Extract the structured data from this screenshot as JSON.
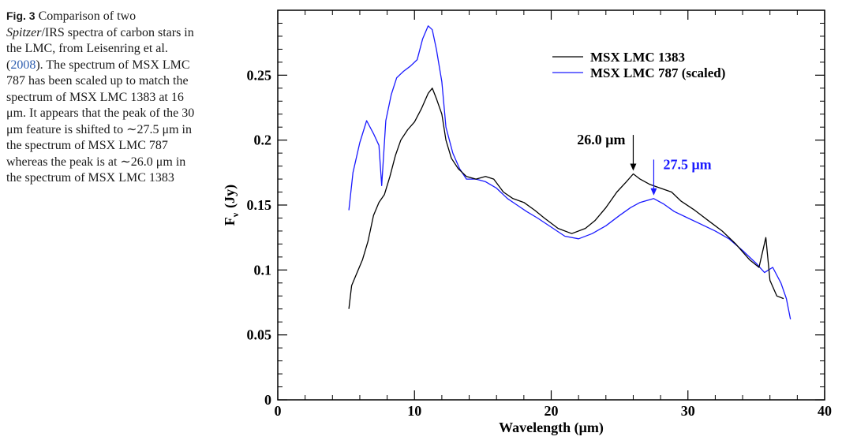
{
  "caption": {
    "label": "Fig. 3",
    "part1": "Comparison of two",
    "italic": "Spitzer",
    "part2": "/IRS spectra of carbon stars in the LMC, from Leisenring et al. (",
    "cite": "2008",
    "part3": "). The spectrum of MSX LMC 787 has been scaled up to match the spectrum of MSX LMC 1383 at 16 μm. It appears that the peak of the 30 μm feature is shifted to ∼27.5 μm in the spectrum of MSX LMC 787 whereas the peak is at ∼26.0 μm in the spectrum of MSX LMC 1383"
  },
  "colors": {
    "series1": "#000000",
    "series2": "#1a1aff",
    "annotation2": "#1a1aff"
  },
  "chart_data": {
    "type": "line",
    "title": "",
    "xlabel": "Wavelength (μm)",
    "ylabel_main": "F",
    "ylabel_sub": "ν",
    "ylabel_unit": "(Jy)",
    "xlim": [
      0,
      40
    ],
    "ylim": [
      0,
      0.3
    ],
    "x_ticks": [
      0,
      10,
      20,
      30,
      40
    ],
    "y_ticks": [
      0,
      0.05,
      0.1,
      0.15,
      0.2,
      0.25
    ],
    "y_tick_labels": [
      "0",
      "0.05",
      "0.1",
      "0.15",
      "0.2",
      "0.25"
    ],
    "grid": false,
    "legend_position": "top-right",
    "series": [
      {
        "name": "MSX LMC 1383",
        "color": "#000000",
        "points": [
          [
            5.2,
            0.07
          ],
          [
            5.4,
            0.088
          ],
          [
            5.8,
            0.098
          ],
          [
            6.2,
            0.108
          ],
          [
            6.6,
            0.122
          ],
          [
            7.0,
            0.142
          ],
          [
            7.4,
            0.152
          ],
          [
            7.8,
            0.158
          ],
          [
            8.2,
            0.172
          ],
          [
            8.6,
            0.188
          ],
          [
            9.0,
            0.2
          ],
          [
            9.5,
            0.208
          ],
          [
            10.0,
            0.214
          ],
          [
            10.5,
            0.224
          ],
          [
            11.0,
            0.236
          ],
          [
            11.3,
            0.24
          ],
          [
            11.6,
            0.232
          ],
          [
            12.0,
            0.22
          ],
          [
            12.3,
            0.2
          ],
          [
            12.7,
            0.186
          ],
          [
            13.2,
            0.178
          ],
          [
            13.8,
            0.172
          ],
          [
            14.5,
            0.17
          ],
          [
            15.2,
            0.172
          ],
          [
            15.8,
            0.17
          ],
          [
            16.5,
            0.16
          ],
          [
            17.2,
            0.155
          ],
          [
            18.0,
            0.152
          ],
          [
            18.8,
            0.146
          ],
          [
            19.5,
            0.14
          ],
          [
            20.5,
            0.132
          ],
          [
            21.5,
            0.128
          ],
          [
            22.5,
            0.132
          ],
          [
            23.2,
            0.138
          ],
          [
            24.0,
            0.148
          ],
          [
            24.8,
            0.16
          ],
          [
            25.5,
            0.168
          ],
          [
            26.0,
            0.174
          ],
          [
            26.5,
            0.17
          ],
          [
            27.2,
            0.166
          ],
          [
            28.0,
            0.163
          ],
          [
            28.8,
            0.16
          ],
          [
            29.5,
            0.153
          ],
          [
            30.5,
            0.146
          ],
          [
            31.5,
            0.138
          ],
          [
            32.5,
            0.13
          ],
          [
            33.5,
            0.12
          ],
          [
            34.5,
            0.108
          ],
          [
            35.2,
            0.102
          ],
          [
            35.7,
            0.125
          ],
          [
            36.0,
            0.092
          ],
          [
            36.5,
            0.08
          ],
          [
            37.0,
            0.078
          ]
        ]
      },
      {
        "name": "MSX LMC 787 (scaled)",
        "color": "#1a1aff",
        "points": [
          [
            5.2,
            0.146
          ],
          [
            5.5,
            0.175
          ],
          [
            6.0,
            0.198
          ],
          [
            6.5,
            0.215
          ],
          [
            7.0,
            0.205
          ],
          [
            7.4,
            0.196
          ],
          [
            7.6,
            0.165
          ],
          [
            7.9,
            0.215
          ],
          [
            8.3,
            0.235
          ],
          [
            8.7,
            0.248
          ],
          [
            9.2,
            0.253
          ],
          [
            9.7,
            0.257
          ],
          [
            10.2,
            0.262
          ],
          [
            10.6,
            0.278
          ],
          [
            11.0,
            0.288
          ],
          [
            11.3,
            0.285
          ],
          [
            11.6,
            0.27
          ],
          [
            12.0,
            0.245
          ],
          [
            12.3,
            0.21
          ],
          [
            12.8,
            0.19
          ],
          [
            13.3,
            0.178
          ],
          [
            13.8,
            0.17
          ],
          [
            14.5,
            0.17
          ],
          [
            15.2,
            0.168
          ],
          [
            16.0,
            0.163
          ],
          [
            16.8,
            0.155
          ],
          [
            17.5,
            0.15
          ],
          [
            18.2,
            0.145
          ],
          [
            19.0,
            0.14
          ],
          [
            20.0,
            0.133
          ],
          [
            21.0,
            0.126
          ],
          [
            22.0,
            0.124
          ],
          [
            23.0,
            0.128
          ],
          [
            24.0,
            0.134
          ],
          [
            25.0,
            0.142
          ],
          [
            25.8,
            0.148
          ],
          [
            26.5,
            0.152
          ],
          [
            27.5,
            0.155
          ],
          [
            28.2,
            0.151
          ],
          [
            29.0,
            0.145
          ],
          [
            30.0,
            0.14
          ],
          [
            31.0,
            0.135
          ],
          [
            32.0,
            0.13
          ],
          [
            33.0,
            0.124
          ],
          [
            34.0,
            0.115
          ],
          [
            35.0,
            0.105
          ],
          [
            35.6,
            0.098
          ],
          [
            36.2,
            0.102
          ],
          [
            36.8,
            0.09
          ],
          [
            37.2,
            0.078
          ],
          [
            37.5,
            0.062
          ]
        ]
      }
    ],
    "annotations": [
      {
        "label": "26.0 μm",
        "x": 26.0,
        "y_tip": 0.174,
        "series": 0
      },
      {
        "label": "27.5 μm",
        "x": 27.5,
        "y_tip": 0.155,
        "series": 1
      }
    ]
  }
}
